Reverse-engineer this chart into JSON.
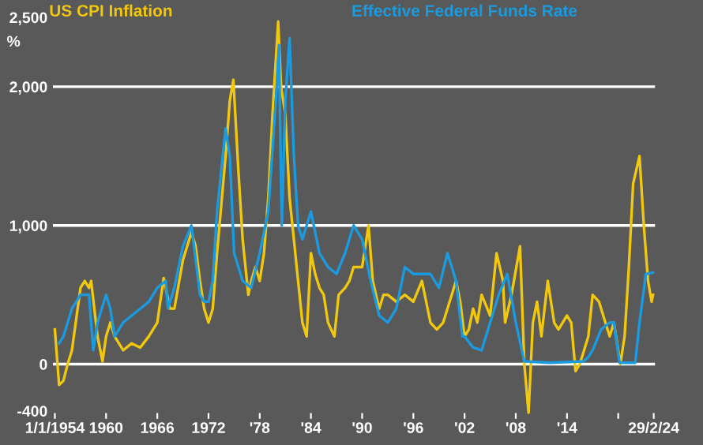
{
  "chart_data": {
    "type": "line",
    "ylabel": "%",
    "legend": "top",
    "grid": false,
    "ylim": [
      -400,
      2500
    ],
    "yticks": [
      -400,
      0,
      {
        "value": 1000,
        "label": "1,000"
      },
      {
        "value": 2000,
        "label": "2,000"
      },
      {
        "value": 2500,
        "label": "2,500"
      }
    ],
    "xlim": [
      "1953-09",
      "2024-06"
    ],
    "xticks": [
      {
        "value": "1954-01-01",
        "label": "1/1/1954"
      },
      {
        "value": "1960-01-01",
        "label": "1960"
      },
      {
        "value": "1966-01-01",
        "label": "1966"
      },
      {
        "value": "1972-01-01",
        "label": "1972"
      },
      {
        "value": "1978-01-01",
        "label": "'78"
      },
      {
        "value": "1984-01-01",
        "label": "'84"
      },
      {
        "value": "1990-01-01",
        "label": "'90"
      },
      {
        "value": "1996-01-01",
        "label": "'96"
      },
      {
        "value": "2002-01-01",
        "label": "'02"
      },
      {
        "value": "2008-01-01",
        "label": "'08"
      },
      {
        "value": "2014-01-01",
        "label": "'14"
      },
      {
        "value": "2020-01-01",
        "label": null
      },
      {
        "value": "2024-02-29",
        "label": "29/2/24"
      }
    ],
    "ref_lines": [
      {
        "axis": "y",
        "value": 0,
        "color": "#ffffff"
      },
      {
        "axis": "y",
        "value": 1000,
        "color": "#ffffff"
      },
      {
        "axis": "y",
        "value": 2000,
        "color": "#ffffff"
      }
    ],
    "series": [
      {
        "name": "US CPI Inflation",
        "color": "#f2c80f",
        "x": [
          "1954-01",
          "1954-07",
          "1955-01",
          "1955-07",
          "1956-01",
          "1957-01",
          "1957-07",
          "1958-01",
          "1958-04",
          "1959-01",
          "1959-08",
          "1960-01",
          "1960-07",
          "1961-01",
          "1962-01",
          "1963-01",
          "1964-01",
          "1965-01",
          "1966-01",
          "1966-10",
          "1967-07",
          "1968-01",
          "1969-01",
          "1970-01",
          "1970-07",
          "1971-01",
          "1971-07",
          "1972-01",
          "1972-07",
          "1973-01",
          "1974-01",
          "1974-07",
          "1974-12",
          "1975-07",
          "1976-01",
          "1976-09",
          "1977-01",
          "1977-07",
          "1978-01",
          "1978-07",
          "1979-01",
          "1979-07",
          "1980-03",
          "1980-07",
          "1981-01",
          "1981-07",
          "1982-01",
          "1982-07",
          "1983-01",
          "1983-07",
          "1984-01",
          "1984-07",
          "1985-01",
          "1985-07",
          "1986-01",
          "1986-10",
          "1987-04",
          "1988-01",
          "1988-07",
          "1989-01",
          "1990-01",
          "1990-10",
          "1991-04",
          "1992-01",
          "1992-07",
          "1993-01",
          "1994-01",
          "1995-01",
          "1996-01",
          "1997-01",
          "1998-01",
          "1998-10",
          "1999-07",
          "2000-07",
          "2001-01",
          "2001-07",
          "2002-01",
          "2002-07",
          "2003-01",
          "2003-07",
          "2004-01",
          "2005-01",
          "2005-10",
          "2006-07",
          "2006-10",
          "2007-07",
          "2008-07",
          "2009-01",
          "2009-07",
          "2010-01",
          "2010-07",
          "2011-01",
          "2011-10",
          "2012-07",
          "2013-01",
          "2014-01",
          "2014-07",
          "2015-01",
          "2015-07",
          "2016-01",
          "2016-07",
          "2017-01",
          "2017-10",
          "2018-07",
          "2019-01",
          "2019-07",
          "2020-04",
          "2020-10",
          "2021-04",
          "2021-10",
          "2022-07",
          "2023-01",
          "2023-07",
          "2023-12",
          "2024-02"
        ],
        "values": [
          250,
          -150,
          -120,
          0,
          100,
          550,
          600,
          550,
          600,
          200,
          20,
          200,
          300,
          200,
          100,
          150,
          120,
          200,
          300,
          620,
          400,
          400,
          750,
          950,
          850,
          600,
          400,
          300,
          400,
          800,
          1500,
          1900,
          2050,
          1400,
          900,
          500,
          600,
          700,
          600,
          800,
          1200,
          1800,
          2470,
          2000,
          1800,
          1200,
          900,
          600,
          300,
          200,
          800,
          650,
          550,
          500,
          300,
          200,
          500,
          550,
          600,
          700,
          700,
          1000,
          600,
          400,
          500,
          500,
          450,
          500,
          450,
          600,
          300,
          250,
          300,
          500,
          600,
          450,
          200,
          250,
          400,
          300,
          500,
          350,
          800,
          600,
          300,
          500,
          850,
          0,
          -350,
          300,
          450,
          200,
          600,
          300,
          250,
          350,
          300,
          -50,
          0,
          100,
          200,
          500,
          450,
          300,
          200,
          300,
          0,
          200,
          700,
          1300,
          1500,
          1000,
          600,
          450,
          500
        ]
      },
      {
        "name": "Effective Federal Funds Rate",
        "color": "#1a9be0",
        "x": [
          "1954-07",
          "1955-01",
          "1956-01",
          "1957-01",
          "1958-01",
          "1958-07",
          "1959-01",
          "1960-01",
          "1960-07",
          "1961-01",
          "1962-01",
          "1963-01",
          "1964-01",
          "1965-01",
          "1966-01",
          "1967-01",
          "1967-04",
          "1968-01",
          "1969-01",
          "1970-01",
          "1971-01",
          "1971-07",
          "1972-01",
          "1972-07",
          "1973-01",
          "1974-01",
          "1974-07",
          "1975-01",
          "1976-01",
          "1977-01",
          "1978-01",
          "1979-01",
          "1980-01",
          "1980-04",
          "1980-08",
          "1981-01",
          "1981-07",
          "1982-01",
          "1982-07",
          "1983-01",
          "1984-01",
          "1985-01",
          "1986-01",
          "1987-01",
          "1988-01",
          "1989-01",
          "1990-01",
          "1991-01",
          "1992-01",
          "1993-01",
          "1994-01",
          "1995-01",
          "1996-01",
          "1997-01",
          "1998-01",
          "1999-01",
          "2000-01",
          "2001-01",
          "2001-10",
          "2002-01",
          "2003-01",
          "2004-01",
          "2005-01",
          "2006-01",
          "2007-01",
          "2008-01",
          "2009-01",
          "2012-01",
          "2015-12",
          "2016-07",
          "2017-01",
          "2018-01",
          "2019-01",
          "2019-07",
          "2020-03",
          "2022-01",
          "2022-07",
          "2023-04",
          "2024-02"
        ],
        "values": [
          150,
          200,
          400,
          500,
          500,
          100,
          300,
          500,
          400,
          200,
          300,
          350,
          400,
          450,
          550,
          600,
          400,
          550,
          850,
          1000,
          500,
          450,
          450,
          600,
          1100,
          1700,
          1500,
          800,
          600,
          550,
          800,
          1100,
          2000,
          2300,
          1000,
          1900,
          2350,
          1500,
          1000,
          900,
          1100,
          800,
          700,
          650,
          800,
          1000,
          900,
          600,
          350,
          300,
          400,
          700,
          650,
          650,
          650,
          550,
          800,
          600,
          200,
          200,
          120,
          100,
          300,
          500,
          650,
          300,
          20,
          10,
          20,
          50,
          100,
          250,
          300,
          300,
          10,
          10,
          300,
          650,
          660
        ]
      }
    ]
  }
}
